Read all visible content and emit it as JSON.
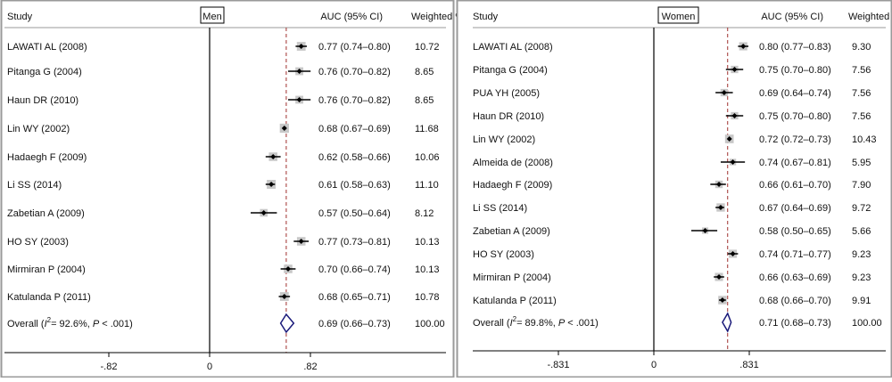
{
  "chart_data": [
    {
      "type": "forest",
      "title": "Men",
      "columns": {
        "study": "Study",
        "auc": "AUC (95% CI)",
        "weight": "Weighted %"
      },
      "x_ticks": [
        "-.82",
        "0",
        ".82"
      ],
      "x_tick_values": [
        -0.82,
        0,
        0.82
      ],
      "reference_line": 0.69,
      "studies": [
        {
          "name": "LAWATI AL (2008)",
          "auc": 0.77,
          "lo": 0.74,
          "hi": 0.8,
          "label": "0.77 (0.74–0.80)",
          "weight": "10.72"
        },
        {
          "name": "Pitanga G (2004)",
          "auc": 0.76,
          "lo": 0.7,
          "hi": 0.82,
          "label": "0.76 (0.70–0.82)",
          "weight": "8.65"
        },
        {
          "name": "Haun DR (2010)",
          "auc": 0.76,
          "lo": 0.7,
          "hi": 0.82,
          "label": "0.76 (0.70–0.82)",
          "weight": "8.65"
        },
        {
          "name": "Lin WY (2002)",
          "auc": 0.68,
          "lo": 0.67,
          "hi": 0.69,
          "label": "0.68 (0.67–0.69)",
          "weight": "11.68"
        },
        {
          "name": "Hadaegh F (2009)",
          "auc": 0.62,
          "lo": 0.58,
          "hi": 0.66,
          "label": "0.62 (0.58–0.66)",
          "weight": "10.06"
        },
        {
          "name": "Li SS (2014)",
          "auc": 0.61,
          "lo": 0.58,
          "hi": 0.63,
          "label": "0.61 (0.58–0.63)",
          "weight": "11.10"
        },
        {
          "name": "Zabetian A (2009)",
          "auc": 0.57,
          "lo": 0.5,
          "hi": 0.64,
          "label": "0.57 (0.50–0.64)",
          "weight": "8.12"
        },
        {
          "name": "HO SY (2003)",
          "auc": 0.77,
          "lo": 0.73,
          "hi": 0.81,
          "label": "0.77 (0.73–0.81)",
          "weight": "10.13"
        },
        {
          "name": "Mirmiran P (2004)",
          "auc": 0.7,
          "lo": 0.66,
          "hi": 0.74,
          "label": "0.70 (0.66–0.74)",
          "weight": "10.13"
        },
        {
          "name": "Katulanda P (2011)",
          "auc": 0.68,
          "lo": 0.65,
          "hi": 0.71,
          "label": "0.68 (0.65–0.71)",
          "weight": "10.78"
        }
      ],
      "overall": {
        "prefix": "Overall  (",
        "i2_symbol": "I",
        "i2_sup": "2",
        "i2_text": "= 92.6%, ",
        "p_symbol": "P",
        "p_text": " < .001)",
        "auc": 0.69,
        "lo": 0.66,
        "hi": 0.73,
        "label": "0.69 (0.66–0.73)",
        "weight": "100.00"
      }
    },
    {
      "type": "forest",
      "title": "Women",
      "columns": {
        "study": "Study",
        "auc": "AUC (95% CI)",
        "weight": "Weighted %"
      },
      "x_ticks": [
        "-.831",
        "0",
        ".831"
      ],
      "x_tick_values": [
        -0.831,
        0,
        0.831
      ],
      "reference_line": 0.71,
      "studies": [
        {
          "name": "LAWATI AL (2008)",
          "auc": 0.8,
          "lo": 0.77,
          "hi": 0.83,
          "label": "0.80 (0.77–0.83)",
          "weight": "9.30"
        },
        {
          "name": "Pitanga G (2004)",
          "auc": 0.75,
          "lo": 0.7,
          "hi": 0.8,
          "label": "0.75 (0.70–0.80)",
          "weight": "7.56"
        },
        {
          "name": "PUA YH (2005)",
          "auc": 0.69,
          "lo": 0.64,
          "hi": 0.74,
          "label": "0.69 (0.64–0.74)",
          "weight": "7.56"
        },
        {
          "name": "Haun DR (2010)",
          "auc": 0.75,
          "lo": 0.7,
          "hi": 0.8,
          "label": "0.75 (0.70–0.80)",
          "weight": "7.56"
        },
        {
          "name": "Lin WY (2002)",
          "auc": 0.72,
          "lo": 0.72,
          "hi": 0.73,
          "label": "0.72 (0.72–0.73)",
          "weight": "10.43"
        },
        {
          "name": "Almeida de (2008)",
          "auc": 0.74,
          "lo": 0.67,
          "hi": 0.81,
          "label": "0.74 (0.67–0.81)",
          "weight": "5.95"
        },
        {
          "name": "Hadaegh F (2009)",
          "auc": 0.66,
          "lo": 0.61,
          "hi": 0.7,
          "label": "0.66 (0.61–0.70)",
          "weight": "7.90"
        },
        {
          "name": "Li SS (2014)",
          "auc": 0.67,
          "lo": 0.64,
          "hi": 0.69,
          "label": "0.67 (0.64–0.69)",
          "weight": "9.72"
        },
        {
          "name": "Zabetian A (2009)",
          "auc": 0.58,
          "lo": 0.5,
          "hi": 0.65,
          "label": "0.58 (0.50–0.65)",
          "weight": "5.66"
        },
        {
          "name": "HO SY (2003)",
          "auc": 0.74,
          "lo": 0.71,
          "hi": 0.77,
          "label": "0.74 (0.71–0.77)",
          "weight": "9.23"
        },
        {
          "name": "Mirmiran P (2004)",
          "auc": 0.66,
          "lo": 0.63,
          "hi": 0.69,
          "label": "0.66 (0.63–0.69)",
          "weight": "9.23"
        },
        {
          "name": "Katulanda P (2011)",
          "auc": 0.68,
          "lo": 0.66,
          "hi": 0.7,
          "label": "0.68 (0.66–0.70)",
          "weight": "9.91"
        }
      ],
      "overall": {
        "prefix": "Overall  (",
        "i2_symbol": "I",
        "i2_sup": "2",
        "i2_text": "= 89.8%, ",
        "p_symbol": "P",
        "p_text": " < .001)",
        "auc": 0.71,
        "lo": 0.68,
        "hi": 0.73,
        "label": "0.71 (0.68–0.73)",
        "weight": "100.00"
      }
    }
  ],
  "colors": {
    "reference_line": "#a0302e",
    "diamond": "#1a1a7a",
    "weight_box": "#c8c8c8",
    "marker": "#000000",
    "panel_border": "#9a9a9a"
  }
}
